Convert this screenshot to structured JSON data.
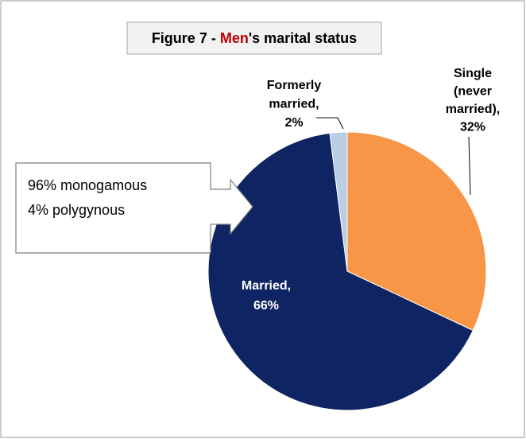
{
  "chart_data": {
    "type": "pie",
    "title_parts": [
      {
        "text": "Figure 7 - ",
        "color": "#000000"
      },
      {
        "text": "Men",
        "color": "#c00000"
      },
      {
        "text": "'s marital status",
        "color": "#000000"
      }
    ],
    "label_lines": [
      [
        "Single",
        "(never",
        "married),"
      ],
      [
        "Married,"
      ],
      [
        "Formerly",
        "married,"
      ]
    ],
    "values": [
      32,
      66,
      2
    ],
    "value_labels": [
      "32%",
      "66%",
      "2%"
    ],
    "colors": [
      "#f79646",
      "#0f2462",
      "#b9cde5"
    ],
    "annotations": [
      "96% monogamous",
      "4% polygynous"
    ]
  }
}
